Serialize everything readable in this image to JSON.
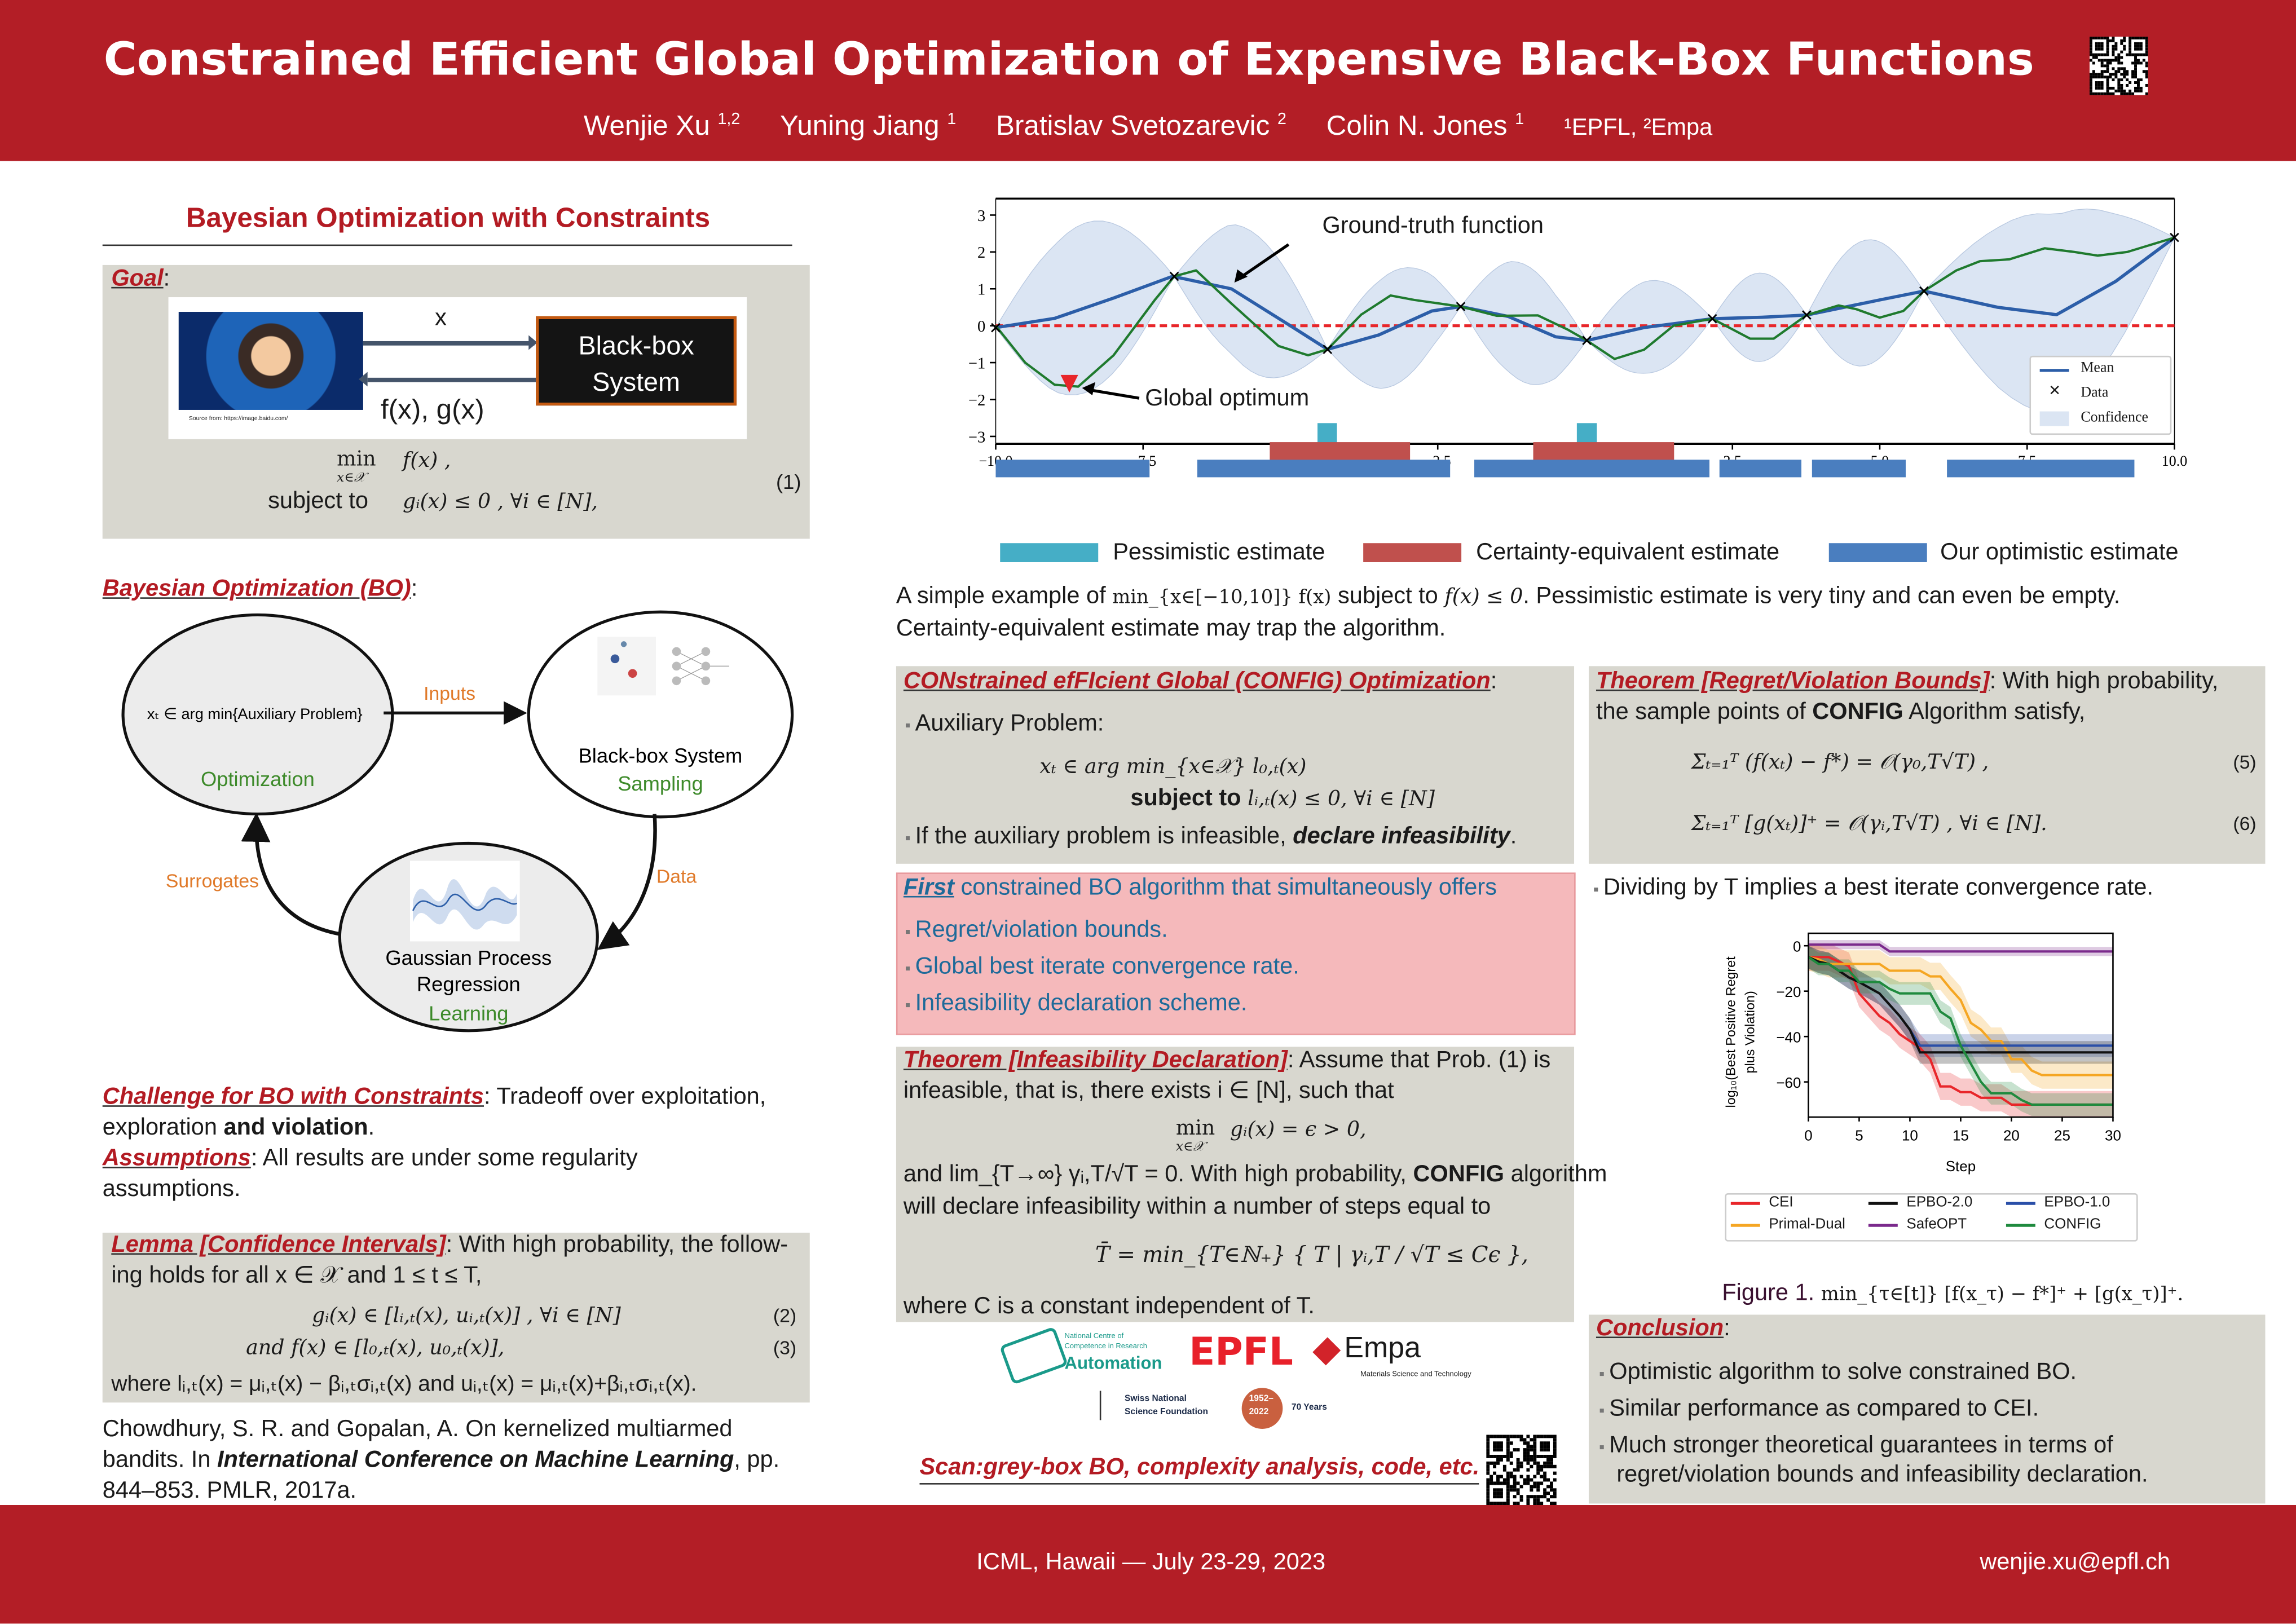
{
  "header": {
    "title": "Constrained Efficient Global Optimization of Expensive Black-Box Functions",
    "authors": [
      {
        "name": "Wenjie Xu",
        "aff": "1,2"
      },
      {
        "name": "Yuning Jiang",
        "aff": "1"
      },
      {
        "name": "Bratislav Svetozarevic",
        "aff": "2"
      },
      {
        "name": "Colin N. Jones",
        "aff": "1"
      }
    ],
    "affiliations": "¹EPFL, ²Empa"
  },
  "left": {
    "section_title": "Bayesian Optimization with Constraints",
    "goal": {
      "label": "Goal",
      "colon": ":",
      "arrow_in": "x",
      "arrow_out": "f(x), g(x)",
      "box": [
        "Black-box",
        "System"
      ],
      "image_source": "Source from: https://image.baidu.com/",
      "eq_min": "min",
      "eq_min_sub": "x∈𝒳",
      "eq_obj": "f(x)  ,",
      "eq_st": "subject to",
      "eq_con": "gᵢ(x) ≤ 0  ,    ∀i ∈ [N],",
      "eq_num": "(1)"
    },
    "bo": {
      "label": "Bayesian Optimization (BO)",
      "colon": ":",
      "opt_text": "xₜ ∈ arg min{Auxiliary Problem}",
      "opt_label": "Optimization",
      "bb_text": "Black-box System",
      "bb_label": "Sampling",
      "gp_text": [
        "Gaussian Process",
        "Regression"
      ],
      "gp_label": "Learning",
      "inputs": "Inputs",
      "data": "Data",
      "surrogates": "Surrogates"
    },
    "challenge": {
      "label": "Challenge for BO with Constraints",
      "text1": ": Tradeoff over exploitation,",
      "text2a": "exploration ",
      "text2b": "and violation",
      "text2c": "."
    },
    "assumptions": {
      "label": "Assumptions",
      "text1": ": All results are under some regularity",
      "text2": "assumptions."
    },
    "lemma": {
      "label": "Lemma [Confidence Intervals]",
      "line1": ": With high probability, the follow-",
      "line2": "ing holds for all x ∈ 𝒳 and 1 ≤ t ≤ T,",
      "eq2": "gᵢ(x) ∈ [lᵢ,ₜ(x), uᵢ,ₜ(x)]  ,    ∀i ∈ [N]",
      "eq2_num": "(2)",
      "eq3": "and     f(x) ∈ [l₀,ₜ(x), u₀,ₜ(x)],",
      "eq3_num": "(3)",
      "line_where": "where lᵢ,ₜ(x) = μᵢ,ₜ(x) − βᵢ,ₜσᵢ,ₜ(x) and uᵢ,ₜ(x) = μᵢ,ₜ(x)+βᵢ,ₜσᵢ,ₜ(x)."
    },
    "reference": {
      "line1": "Chowdhury, S. R. and Gopalan, A. On kernelized multiarmed",
      "line2a": "bandits. In ",
      "line2b": "International Conference on Machine Learning",
      "line2c": ", pp.",
      "line3": "844–853. PMLR, 2017a."
    }
  },
  "illustration": {
    "annotation_truth": "Ground-truth function",
    "annotation_opt": "Global optimum",
    "legend": [
      "Mean",
      "Data",
      "Confidence"
    ],
    "x_ticks": [
      "−10.0",
      "−7.5",
      "−5.0",
      "−2.5",
      "0.0",
      "2.5",
      "5.0",
      "7.5",
      "10.0"
    ],
    "y_ticks": [
      "3",
      "2",
      "1",
      "0",
      "−1",
      "−2",
      "−3"
    ],
    "colors": {
      "mean": "#2c5ea8",
      "truth": "#1f7a2e",
      "band": "#dbe5f3",
      "threshold": "#e8262a",
      "pessimistic": "#45aec6",
      "certainty": "#c0504d",
      "optimistic": "#4a7ebf"
    },
    "data_points": [
      [
        -10,
        -0.05
      ],
      [
        -6.97,
        1.34
      ],
      [
        -4.37,
        -0.64
      ],
      [
        -2.11,
        0.52
      ],
      [
        0.03,
        -0.4
      ],
      [
        2.16,
        0.19
      ],
      [
        3.76,
        0.29
      ],
      [
        5.75,
        0.94
      ],
      [
        10,
        2.39
      ]
    ],
    "mean": [
      [
        -10,
        -0.05
      ],
      [
        -9,
        0.2
      ],
      [
        -8,
        0.75
      ],
      [
        -7,
        1.34
      ],
      [
        -6,
        1.0
      ],
      [
        -5,
        0.0
      ],
      [
        -4.37,
        -0.64
      ],
      [
        -3.5,
        -0.25
      ],
      [
        -2.6,
        0.4
      ],
      [
        -2.11,
        0.52
      ],
      [
        -1.3,
        0.25
      ],
      [
        -0.5,
        -0.3
      ],
      [
        0.03,
        -0.4
      ],
      [
        1,
        -0.05
      ],
      [
        2.16,
        0.19
      ],
      [
        3,
        0.23
      ],
      [
        3.76,
        0.29
      ],
      [
        5,
        0.7
      ],
      [
        5.75,
        0.94
      ],
      [
        7,
        0.5
      ],
      [
        8,
        0.3
      ],
      [
        9,
        1.2
      ],
      [
        10,
        2.39
      ]
    ],
    "truth": [
      [
        -10,
        0
      ],
      [
        -9.5,
        -1.0
      ],
      [
        -9,
        -1.6
      ],
      [
        -8.6,
        -1.65
      ],
      [
        -8,
        -0.8
      ],
      [
        -7.3,
        0.7
      ],
      [
        -6.97,
        1.34
      ],
      [
        -6.6,
        1.5
      ],
      [
        -6,
        0.6
      ],
      [
        -5.2,
        -0.55
      ],
      [
        -4.7,
        -0.8
      ],
      [
        -4.37,
        -0.64
      ],
      [
        -3.8,
        0.3
      ],
      [
        -3.3,
        0.82
      ],
      [
        -2.9,
        0.7
      ],
      [
        -2.11,
        0.52
      ],
      [
        -1.5,
        0.27
      ],
      [
        -0.8,
        0.28
      ],
      [
        -0.3,
        -0.1
      ],
      [
        0.03,
        -0.4
      ],
      [
        0.5,
        -0.9
      ],
      [
        1,
        -0.65
      ],
      [
        1.5,
        0.0
      ],
      [
        2.16,
        0.19
      ],
      [
        2.8,
        -0.35
      ],
      [
        3.2,
        -0.35
      ],
      [
        3.76,
        0.29
      ],
      [
        4.3,
        0.55
      ],
      [
        4.6,
        0.45
      ],
      [
        5,
        0.22
      ],
      [
        5.4,
        0.4
      ],
      [
        5.75,
        0.94
      ],
      [
        6.3,
        1.5
      ],
      [
        6.7,
        1.75
      ],
      [
        7.2,
        1.8
      ],
      [
        7.8,
        2.1
      ],
      [
        8.3,
        2.0
      ],
      [
        8.7,
        1.9
      ],
      [
        9.2,
        2.0
      ],
      [
        10,
        2.39
      ]
    ],
    "band_halfwidth_peaks": [
      2.3,
      1.9,
      1.55,
      1.6,
      1.25,
      1.2,
      1.7,
      2.7
    ],
    "global_optimum": [
      -8.75,
      -1.65
    ],
    "threshold": 0,
    "intervals": {
      "pessimistic": [
        [
          -4.54,
          -4.21
        ],
        [
          -0.14,
          0.2
        ]
      ],
      "certainty": [
        [
          -5.35,
          -2.97
        ],
        [
          -0.88,
          1.51
        ]
      ],
      "optimistic": [
        [
          -10,
          -7.39
        ],
        [
          -6.58,
          -2.29
        ],
        [
          -1.88,
          2.11
        ],
        [
          2.28,
          3.67
        ],
        [
          3.85,
          5.44
        ],
        [
          6.14,
          9.32
        ]
      ]
    },
    "estimate_legend": [
      "Pessimistic estimate",
      "Certainty-equivalent estimate",
      "Our optimistic estimate"
    ],
    "caption1a": "A simple example of ",
    "caption1m": "min_{x∈[−10,10]} f(x)",
    "caption1b": " subject to ",
    "caption1m2": "f(x) ≤ 0",
    "caption1c": ". Pessimistic estimate is very tiny and can even be empty.",
    "caption2": "Certainty-equivalent estimate may trap the algorithm."
  },
  "config": {
    "title": "CONstrained efFIcient Global (CONFIG) Optimization",
    "colon": ":",
    "bullet1": "Auxiliary Problem:",
    "eq_a": "xₜ ∈ arg min_{x∈𝒳}     l₀,ₜ(x)",
    "eq_b_label": "subject to ",
    "eq_b": "lᵢ,ₜ(x) ≤ 0, ∀i ∈ [N]",
    "bullet2a": "If the auxiliary problem is infeasible, ",
    "bullet2b": "declare infeasibility",
    "bullet2c": "."
  },
  "offers": {
    "title_a": "First",
    "title_b": " constrained BO algorithm that simultaneously offers",
    "items": [
      "Regret/violation bounds.",
      "Global best iterate convergence rate.",
      "Infeasibility declaration scheme."
    ]
  },
  "infeasibility": {
    "label": "Theorem [Infeasibility Declaration]",
    "line1": ":  Assume that Prob. (1) is",
    "line2": "infeasible, that is, there exists i ∈ [N], such that",
    "eq_min": "min",
    "eq_sub": "x∈𝒳",
    "eq_body": "gᵢ(x) = ϵ > 0,",
    "line3a": "and lim_{T→∞} γᵢ,T/√T = 0. With high probability, ",
    "line3b": "CONFIG",
    "line3c": " algorithm",
    "line4": "will declare infeasibility within a number of steps equal to",
    "eq_T": "T̄ = min_{T∈ℕ₊} { T | γᵢ,T / √T ≤ Cϵ },",
    "line5": "where C is a constant independent of T."
  },
  "logos": {
    "nccr": [
      "National Centre of",
      "Competence in Research",
      "Automation"
    ],
    "epfl": "EPFL",
    "empa": "Empa",
    "empa_sub": "Materials Science and Technology",
    "snsf": [
      "Swiss National",
      "Science Foundation"
    ],
    "anniv": [
      "1952–",
      "2022"
    ],
    "anniv_text": "70 Years"
  },
  "scan": "Scan:grey-box BO, complexity analysis, code, etc.",
  "regret": {
    "label": "Theorem [Regret/Violation Bounds]",
    "line1": ":   With high probability,",
    "line2a": "the sample points of ",
    "line2b": "CONFIG",
    "line2c": " Algorithm satisfy,",
    "eq5": "Σₜ₌₁ᵀ (f(xₜ) − f*) = 𝒪(γ₀,T√T)  ,",
    "eq5_num": "(5)",
    "eq6": "Σₜ₌₁ᵀ [g(xₜ)]⁺ = 𝒪(γᵢ,T√T)  ,    ∀i ∈ [N].",
    "eq6_num": "(6)"
  },
  "dividing": "Dividing by T implies a best iterate convergence rate.",
  "chart_data": {
    "type": "line",
    "title": "",
    "xlabel": "Step",
    "ylabel": "log₁₀(Best Positive Regret plus Violation)",
    "ylabel_lines": [
      "log₁₀(Best Positive Regret",
      "plus Violation)"
    ],
    "xlim": [
      0,
      30
    ],
    "ylim": [
      -76,
      5
    ],
    "x_ticks": [
      0,
      5,
      10,
      15,
      20,
      25,
      30
    ],
    "y_ticks": [
      0,
      -20,
      -40,
      -60
    ],
    "x_tick_labels": [
      "0",
      "5",
      "10",
      "15",
      "20",
      "25",
      "30"
    ],
    "y_tick_labels": [
      "0",
      "−20",
      "−40",
      "−60"
    ],
    "legend_position": "bottom",
    "x": [
      0,
      1,
      2,
      3,
      4,
      5,
      6,
      7,
      8,
      9,
      10,
      11,
      12,
      13,
      14,
      15,
      16,
      17,
      18,
      19,
      20,
      21,
      22,
      23,
      24,
      25,
      26,
      27,
      28,
      29,
      30
    ],
    "series": [
      {
        "name": "CEI",
        "color": "#e8262a",
        "band": 6,
        "values": [
          -5,
          -5,
          -5,
          -7,
          -9,
          -21,
          -26,
          -31,
          -34,
          -39,
          -42,
          -45,
          -50,
          -62,
          -62,
          -64.5,
          -64.5,
          -67,
          -67,
          -67,
          -70,
          -70,
          -70,
          -70,
          -70,
          -70,
          -70,
          -70,
          -70,
          -70,
          -70
        ]
      },
      {
        "name": "SafeOPT",
        "color": "#7b2a8c",
        "band": 2,
        "values": [
          0.5,
          0.5,
          0.5,
          0.5,
          0.5,
          0.5,
          0.5,
          0.5,
          -2.5,
          -2.5,
          -2.5,
          -2.5,
          -2.5,
          -2.5,
          -2.5,
          -2.5,
          -2.5,
          -2.5,
          -2.5,
          -2.5,
          -2.5,
          -2.5,
          -2.5,
          -2.5,
          -2.5,
          -2.5,
          -2.5,
          -2.5,
          -2.5,
          -2.5,
          -2.5
        ]
      },
      {
        "name": "Primal-Dual",
        "color": "#f5a623",
        "band": 6,
        "values": [
          -5,
          -6,
          -8,
          -8,
          -8,
          -8,
          -8,
          -8,
          -11,
          -11,
          -11,
          -11,
          -13.5,
          -13.5,
          -19,
          -24,
          -34,
          -37,
          -42,
          -42,
          -50,
          -50,
          -55,
          -57,
          -57,
          -57,
          -57,
          -57,
          -57,
          -57,
          -57
        ]
      },
      {
        "name": "EPBO-1.0",
        "color": "#2a4fa8",
        "band": 5,
        "values": [
          -5,
          -7,
          -8,
          -11,
          -14,
          -16,
          -18.5,
          -21,
          -26,
          -31,
          -37,
          -44,
          -44,
          -44,
          -44,
          -44,
          -44,
          -44,
          -44,
          -44,
          -44,
          -44,
          -44,
          -44,
          -44,
          -44,
          -44,
          -44,
          -44,
          -44,
          -44
        ]
      },
      {
        "name": "EPBO-2.0",
        "color": "#111111",
        "band": 5,
        "values": [
          -5,
          -7,
          -8,
          -11,
          -14,
          -16,
          -18.5,
          -21,
          -26,
          -31,
          -37,
          -47,
          -47,
          -47,
          -47,
          -47,
          -47,
          -47,
          -47,
          -47,
          -47,
          -47,
          -47,
          -47,
          -47,
          -47,
          -47,
          -47,
          -47,
          -47,
          -47
        ]
      },
      {
        "name": "CONFIG",
        "color": "#1f8a3e",
        "band": 5,
        "values": [
          -5,
          -8,
          -8,
          -11,
          -11,
          -16,
          -16,
          -16,
          -19,
          -21,
          -21,
          -21,
          -21,
          -29,
          -32,
          -44,
          -52,
          -60,
          -65,
          -65,
          -65,
          -68,
          -70,
          -70,
          -70,
          -70,
          -70,
          -70,
          -70,
          -70,
          -70
        ]
      }
    ]
  },
  "figure_caption_a": "Figure 1. ",
  "figure_caption_m": "min_{τ∈[t]} [f(x_τ) − f*]⁺ + [g(x_τ)]⁺.",
  "conclusion": {
    "label": "Conclusion",
    "colon": ":",
    "items": [
      "Optimistic algorithm to solve constrained BO.",
      "Similar performance as compared to CEI.",
      "Much stronger theoretical guarantees in terms of"
    ],
    "item3_line2": "regret/violation bounds and infeasibility declaration."
  },
  "footer": {
    "venue": "ICML, Hawaii — July 23-29, 2023",
    "email": "wenjie.xu@epfl.ch"
  }
}
